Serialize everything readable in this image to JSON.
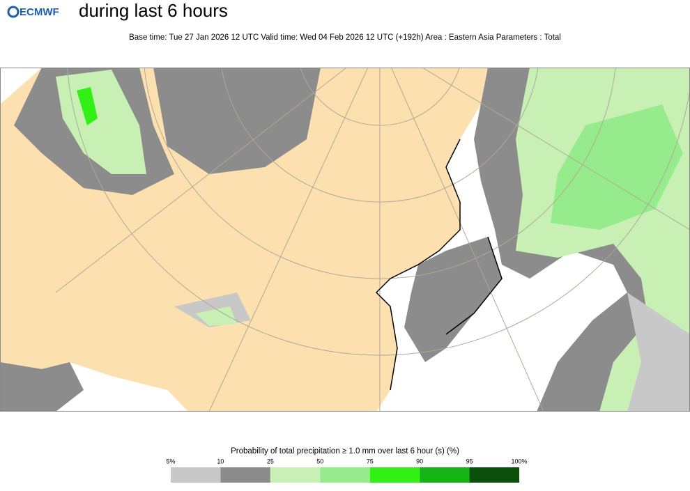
{
  "header": {
    "logo": "ECMWF",
    "title": "during last 6 hours",
    "subtitle": "Base time: Tue 27 Jan 2026 12 UTC Valid time: Wed 04 Feb 2026 12 UTC (+192h) Area : Eastern Asia Parameters : Total"
  },
  "legend": {
    "title": "Probability of total precipitation ≥ 1.0 mm over last 6 hour (s) (%)",
    "ticks": [
      {
        "value": 5,
        "label": "5%"
      },
      10,
      25,
      50,
      75,
      90,
      95,
      {
        "value": 100,
        "label": "100%"
      }
    ],
    "colors": [
      "#c8c8c8",
      "#8c8c8c",
      "#c8f0b4",
      "#96ec8c",
      "#32f014",
      "#14b414",
      "#0a500a"
    ]
  }
}
